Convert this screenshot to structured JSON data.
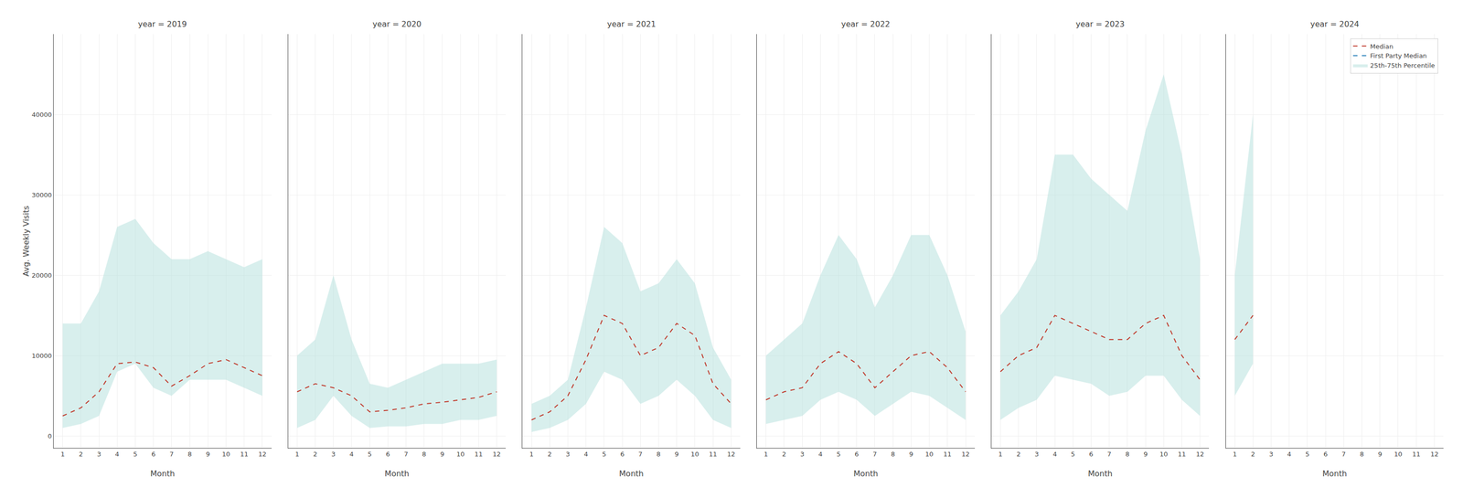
{
  "chart_data": [
    {
      "type": "line",
      "title": "year = 2019",
      "xlabel": "Month",
      "ylabel": "Avg. Weekly Visits",
      "x": [
        1,
        2,
        3,
        4,
        5,
        6,
        7,
        8,
        9,
        10,
        11,
        12
      ],
      "xlim": [
        0.5,
        12.5
      ],
      "xticks": [
        1,
        2,
        3,
        4,
        5,
        6,
        7,
        8,
        9,
        10,
        11,
        12
      ],
      "ylim": [
        -1500,
        50000
      ],
      "yticks": [
        0,
        10000,
        20000,
        30000,
        40000
      ],
      "grid": true,
      "series": [
        {
          "name": "Median",
          "color": "#c0392b",
          "line_style": "dashed",
          "values": [
            2500,
            3500,
            5500,
            9000,
            9200,
            8500,
            6200,
            7500,
            9000,
            9500,
            8500,
            7500
          ]
        },
        {
          "name": "25th-75th Percentile",
          "type": "area",
          "color": "#b2dfdb",
          "lower": [
            1000,
            1500,
            2500,
            8000,
            9000,
            6000,
            5000,
            7000,
            7000,
            7000,
            6000,
            5000
          ],
          "upper": [
            14000,
            14000,
            18000,
            26000,
            27000,
            24000,
            22000,
            22000,
            23000,
            22000,
            21000,
            22000
          ]
        }
      ]
    },
    {
      "type": "line",
      "title": "year = 2020",
      "xlabel": "Month",
      "tick_labels": "x",
      "x": [
        1,
        2,
        3,
        4,
        5,
        6,
        7,
        8,
        9,
        10,
        11,
        12
      ],
      "xlim": [
        0.5,
        12.5
      ],
      "xticks": [
        1,
        2,
        3,
        4,
        5,
        6,
        7,
        8,
        9,
        10,
        11,
        12
      ],
      "ylim": [
        -1500,
        50000
      ],
      "yticks": [
        0,
        10000,
        20000,
        30000,
        40000
      ],
      "grid": true,
      "series": [
        {
          "name": "Median",
          "color": "#c0392b",
          "line_style": "dashed",
          "values": [
            5500,
            6500,
            6000,
            5000,
            3000,
            3200,
            3500,
            4000,
            4200,
            4500,
            4800,
            5500
          ]
        },
        {
          "name": "25th-75th Percentile",
          "type": "area",
          "color": "#b2dfdb",
          "lower": [
            1000,
            2000,
            5000,
            2500,
            1000,
            1200,
            1200,
            1500,
            1500,
            2000,
            2000,
            2500
          ],
          "upper": [
            10000,
            12000,
            20000,
            12000,
            6500,
            6000,
            7000,
            8000,
            9000,
            9000,
            9000,
            9500
          ]
        }
      ]
    },
    {
      "type": "line",
      "title": "year = 2021",
      "xlabel": "Month",
      "tick_labels": "x",
      "x": [
        1,
        2,
        3,
        4,
        5,
        6,
        7,
        8,
        9,
        10,
        11,
        12
      ],
      "xlim": [
        0.5,
        12.5
      ],
      "xticks": [
        1,
        2,
        3,
        4,
        5,
        6,
        7,
        8,
        9,
        10,
        11,
        12
      ],
      "ylim": [
        -1500,
        50000
      ],
      "yticks": [
        0,
        10000,
        20000,
        30000,
        40000
      ],
      "grid": true,
      "series": [
        {
          "name": "Median",
          "color": "#c0392b",
          "line_style": "dashed",
          "values": [
            2000,
            3000,
            5000,
            9500,
            15000,
            14000,
            10000,
            11000,
            14000,
            12500,
            6500,
            4000
          ]
        },
        {
          "name": "25th-75th Percentile",
          "type": "area",
          "color": "#b2dfdb",
          "lower": [
            500,
            1000,
            2000,
            4000,
            8000,
            7000,
            4000,
            5000,
            7000,
            5000,
            2000,
            1000
          ],
          "upper": [
            4000,
            5000,
            7000,
            16000,
            26000,
            24000,
            18000,
            19000,
            22000,
            19000,
            11000,
            7000
          ]
        }
      ]
    },
    {
      "type": "line",
      "title": "year = 2022",
      "xlabel": "Month",
      "tick_labels": "x",
      "x": [
        1,
        2,
        3,
        4,
        5,
        6,
        7,
        8,
        9,
        10,
        11,
        12
      ],
      "xlim": [
        0.5,
        12.5
      ],
      "xticks": [
        1,
        2,
        3,
        4,
        5,
        6,
        7,
        8,
        9,
        10,
        11,
        12
      ],
      "ylim": [
        -1500,
        50000
      ],
      "yticks": [
        0,
        10000,
        20000,
        30000,
        40000
      ],
      "grid": true,
      "series": [
        {
          "name": "Median",
          "color": "#c0392b",
          "line_style": "dashed",
          "values": [
            4500,
            5500,
            6000,
            9000,
            10500,
            9000,
            6000,
            8000,
            10000,
            10500,
            8500,
            5500
          ]
        },
        {
          "name": "25th-75th Percentile",
          "type": "area",
          "color": "#b2dfdb",
          "lower": [
            1500,
            2000,
            2500,
            4500,
            5500,
            4500,
            2500,
            4000,
            5500,
            5000,
            3500,
            2000
          ],
          "upper": [
            10000,
            12000,
            14000,
            20000,
            25000,
            22000,
            16000,
            20000,
            25000,
            25000,
            20000,
            13000
          ]
        }
      ]
    },
    {
      "type": "line",
      "title": "year = 2023",
      "xlabel": "Month",
      "tick_labels": "x",
      "x": [
        1,
        2,
        3,
        4,
        5,
        6,
        7,
        8,
        9,
        10,
        11,
        12
      ],
      "xlim": [
        0.5,
        12.5
      ],
      "xticks": [
        1,
        2,
        3,
        4,
        5,
        6,
        7,
        8,
        9,
        10,
        11,
        12
      ],
      "ylim": [
        -1500,
        50000
      ],
      "yticks": [
        0,
        10000,
        20000,
        30000,
        40000
      ],
      "grid": true,
      "series": [
        {
          "name": "Median",
          "color": "#c0392b",
          "line_style": "dashed",
          "values": [
            8000,
            10000,
            11000,
            15000,
            14000,
            13000,
            12000,
            12000,
            14000,
            15000,
            10000,
            7000
          ]
        },
        {
          "name": "25th-75th Percentile",
          "type": "area",
          "color": "#b2dfdb",
          "lower": [
            2000,
            3500,
            4500,
            7500,
            7000,
            6500,
            5000,
            5500,
            7500,
            7500,
            4500,
            2500
          ],
          "upper": [
            15000,
            18000,
            22000,
            35000,
            35000,
            32000,
            30000,
            28000,
            38000,
            45000,
            35000,
            22000
          ]
        }
      ]
    },
    {
      "type": "line",
      "title": "year = 2024",
      "xlabel": "Month",
      "tick_labels": "x",
      "legend": "upper right",
      "x": [
        1,
        2,
        3,
        4,
        5,
        6,
        7,
        8,
        9,
        10,
        11,
        12
      ],
      "xlim": [
        0.5,
        12.5
      ],
      "xticks": [
        1,
        2,
        3,
        4,
        5,
        6,
        7,
        8,
        9,
        10,
        11,
        12
      ],
      "ylim": [
        -1500,
        50000
      ],
      "yticks": [
        0,
        10000,
        20000,
        30000,
        40000
      ],
      "grid": true,
      "series": [
        {
          "name": "Median",
          "color": "#c0392b",
          "line_style": "dashed",
          "values": [
            12000,
            15000,
            null,
            null,
            null,
            null,
            null,
            null,
            null,
            null,
            null,
            null
          ]
        },
        {
          "name": "First Party Median",
          "color": "#2980b9",
          "line_style": "dashed",
          "values": [
            null,
            null,
            null,
            null,
            null,
            null,
            null,
            null,
            null,
            null,
            null,
            null
          ]
        },
        {
          "name": "25th-75th Percentile",
          "type": "area",
          "color": "#b2dfdb",
          "lower": [
            5000,
            9000,
            null,
            null,
            null,
            null,
            null,
            null,
            null,
            null,
            null,
            null
          ],
          "upper": [
            20000,
            40000,
            null,
            null,
            null,
            null,
            null,
            null,
            null,
            null,
            null,
            null
          ]
        }
      ]
    }
  ]
}
